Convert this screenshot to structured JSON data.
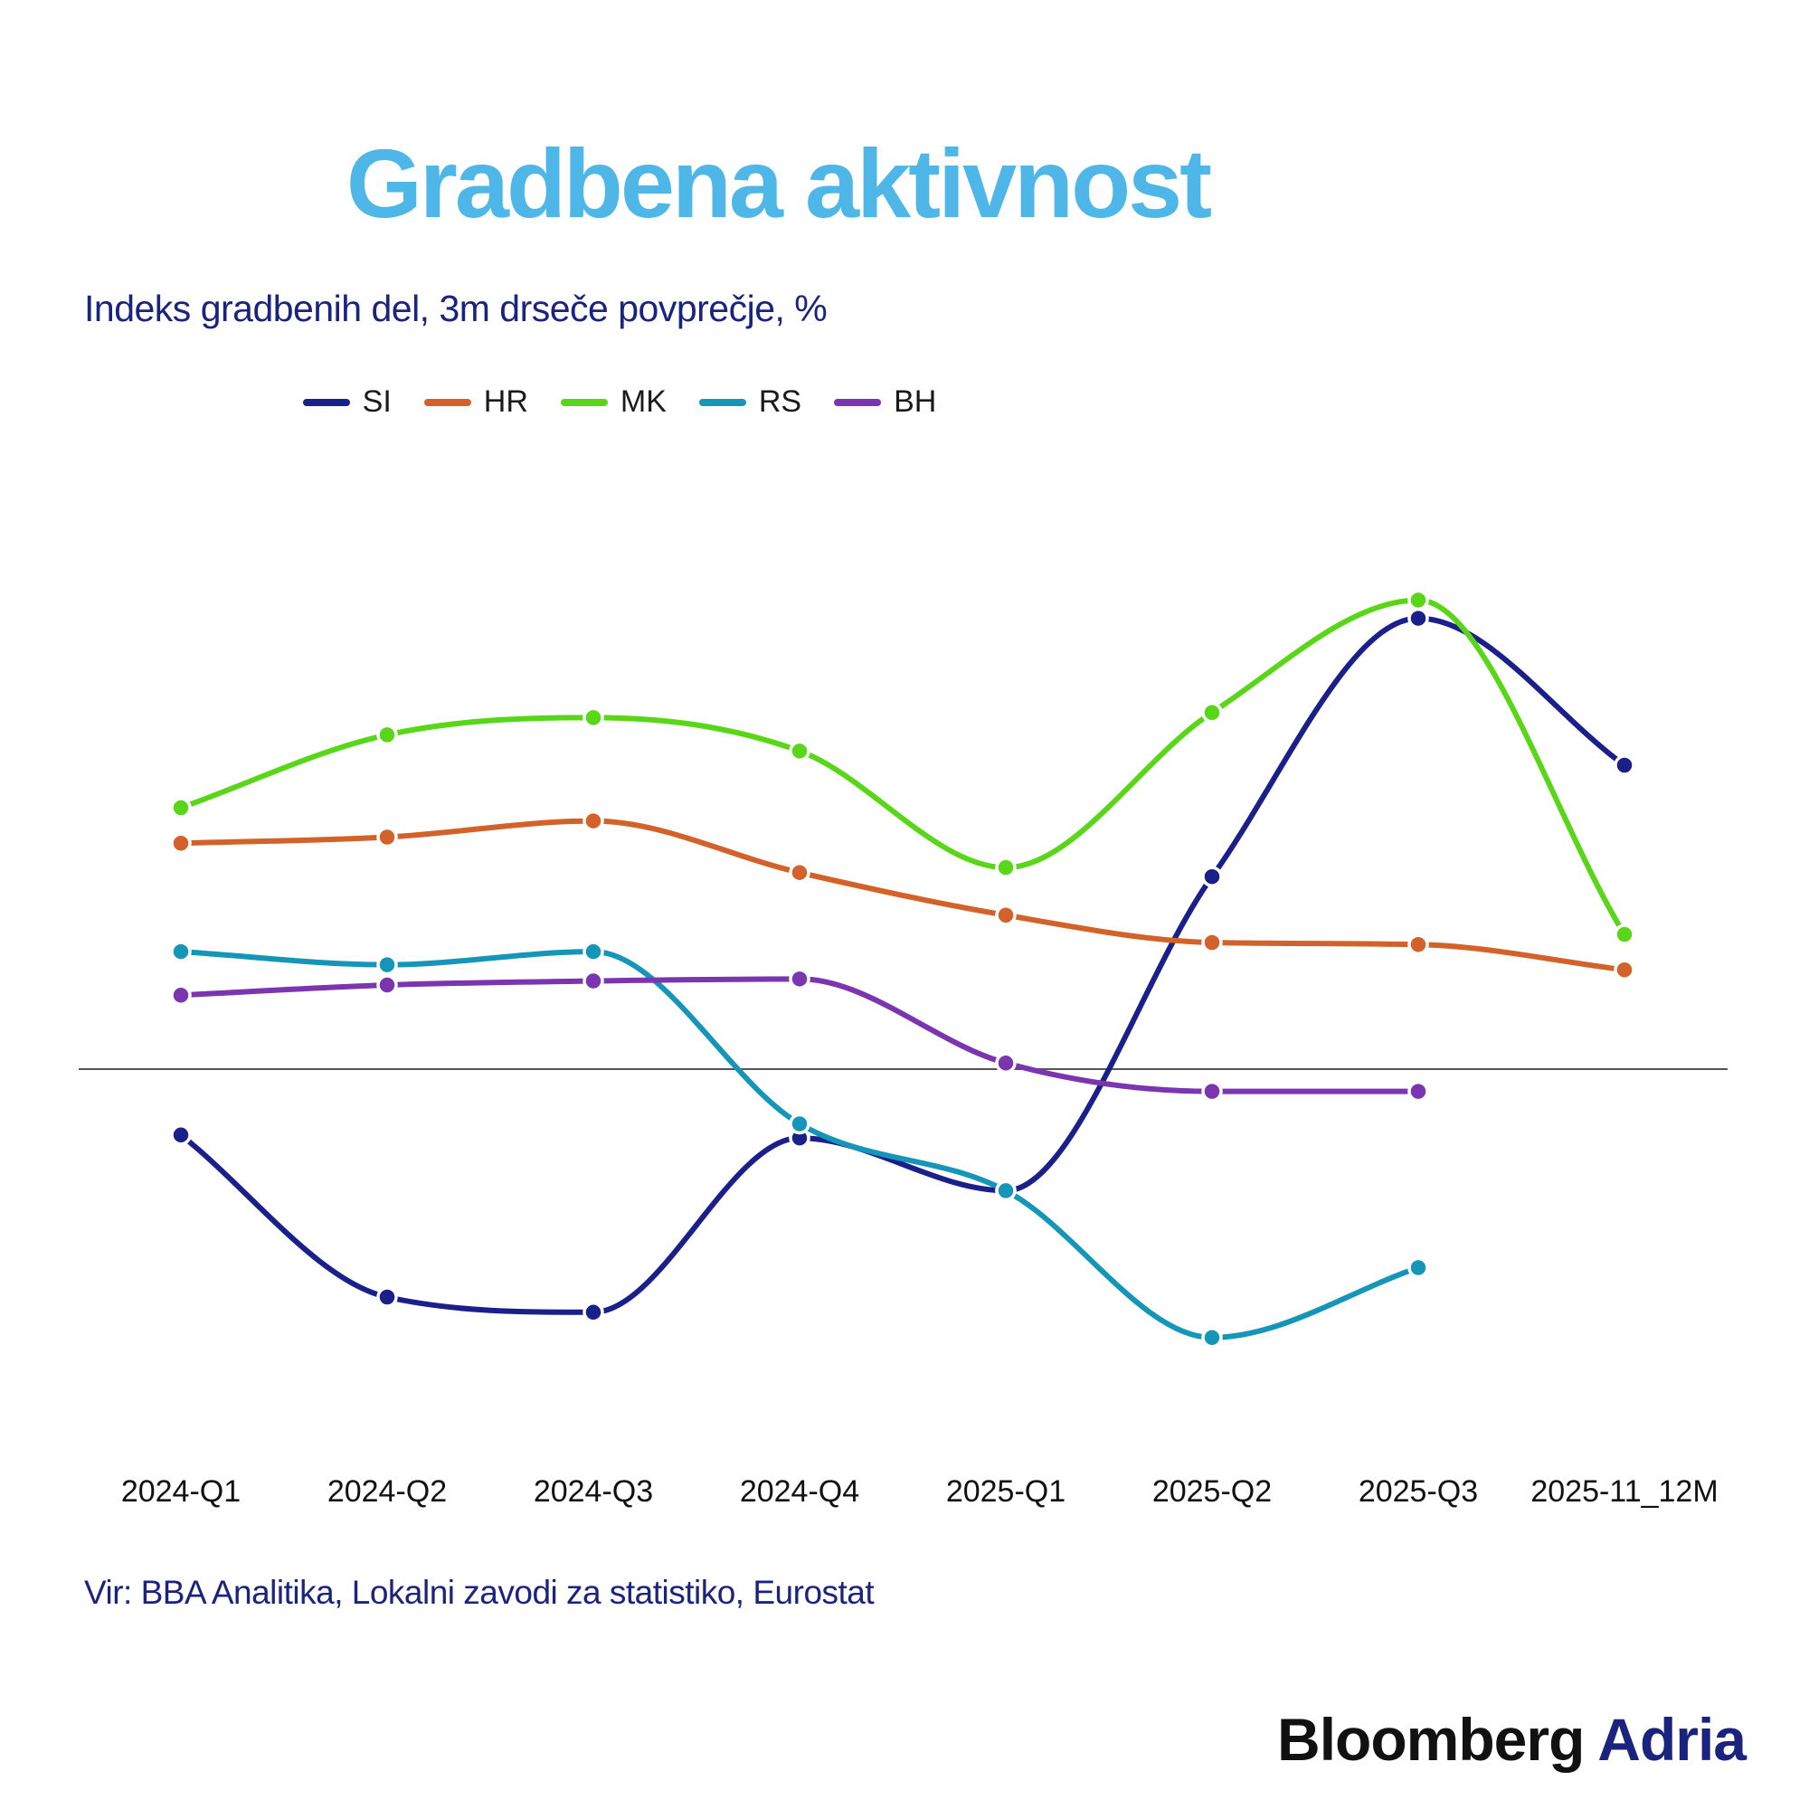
{
  "header": {
    "title": "Gradbena aktivnost",
    "subtitle": "Indeks gradbenih del, 3m drseče povprečje, %"
  },
  "footer": {
    "source": "Vir: BBA Analitika, Lokalni zavodi za statistiko, Eurostat",
    "brand_part1": "Bloomberg",
    "brand_part2": "Adria"
  },
  "chart_data": {
    "type": "line",
    "title": "Gradbena aktivnost",
    "subtitle": "Indeks gradbenih del, 3m drseče povprečje, %",
    "xlabel": "",
    "ylabel": "",
    "categories": [
      "2024-Q1",
      "2024-Q2",
      "2024-Q3",
      "2024-Q4",
      "2025-Q1",
      "2025-Q2",
      "2025-Q3",
      "2025-11_12M"
    ],
    "baseline": 0,
    "grid": false,
    "legend_position": "top-center",
    "series": [
      {
        "name": "SI",
        "color": "#1a1f8a",
        "values": [
          -6.5,
          -22.5,
          -24.0,
          -6.8,
          -12.0,
          19.0,
          44.5,
          30.0
        ]
      },
      {
        "name": "HR",
        "color": "#d2622a",
        "values": [
          22.3,
          22.9,
          24.5,
          19.4,
          15.2,
          12.5,
          12.3,
          9.8
        ]
      },
      {
        "name": "MK",
        "color": "#5ad619",
        "values": [
          25.8,
          33.0,
          34.7,
          31.4,
          19.9,
          35.2,
          46.3,
          13.3
        ]
      },
      {
        "name": "RS",
        "color": "#1596b8",
        "values": [
          11.6,
          10.3,
          11.6,
          -5.4,
          -12.0,
          -26.5,
          -19.6,
          null
        ]
      },
      {
        "name": "BH",
        "color": "#7b35ae",
        "values": [
          7.3,
          8.3,
          8.7,
          8.9,
          0.6,
          -2.2,
          -2.2,
          null
        ]
      }
    ]
  }
}
